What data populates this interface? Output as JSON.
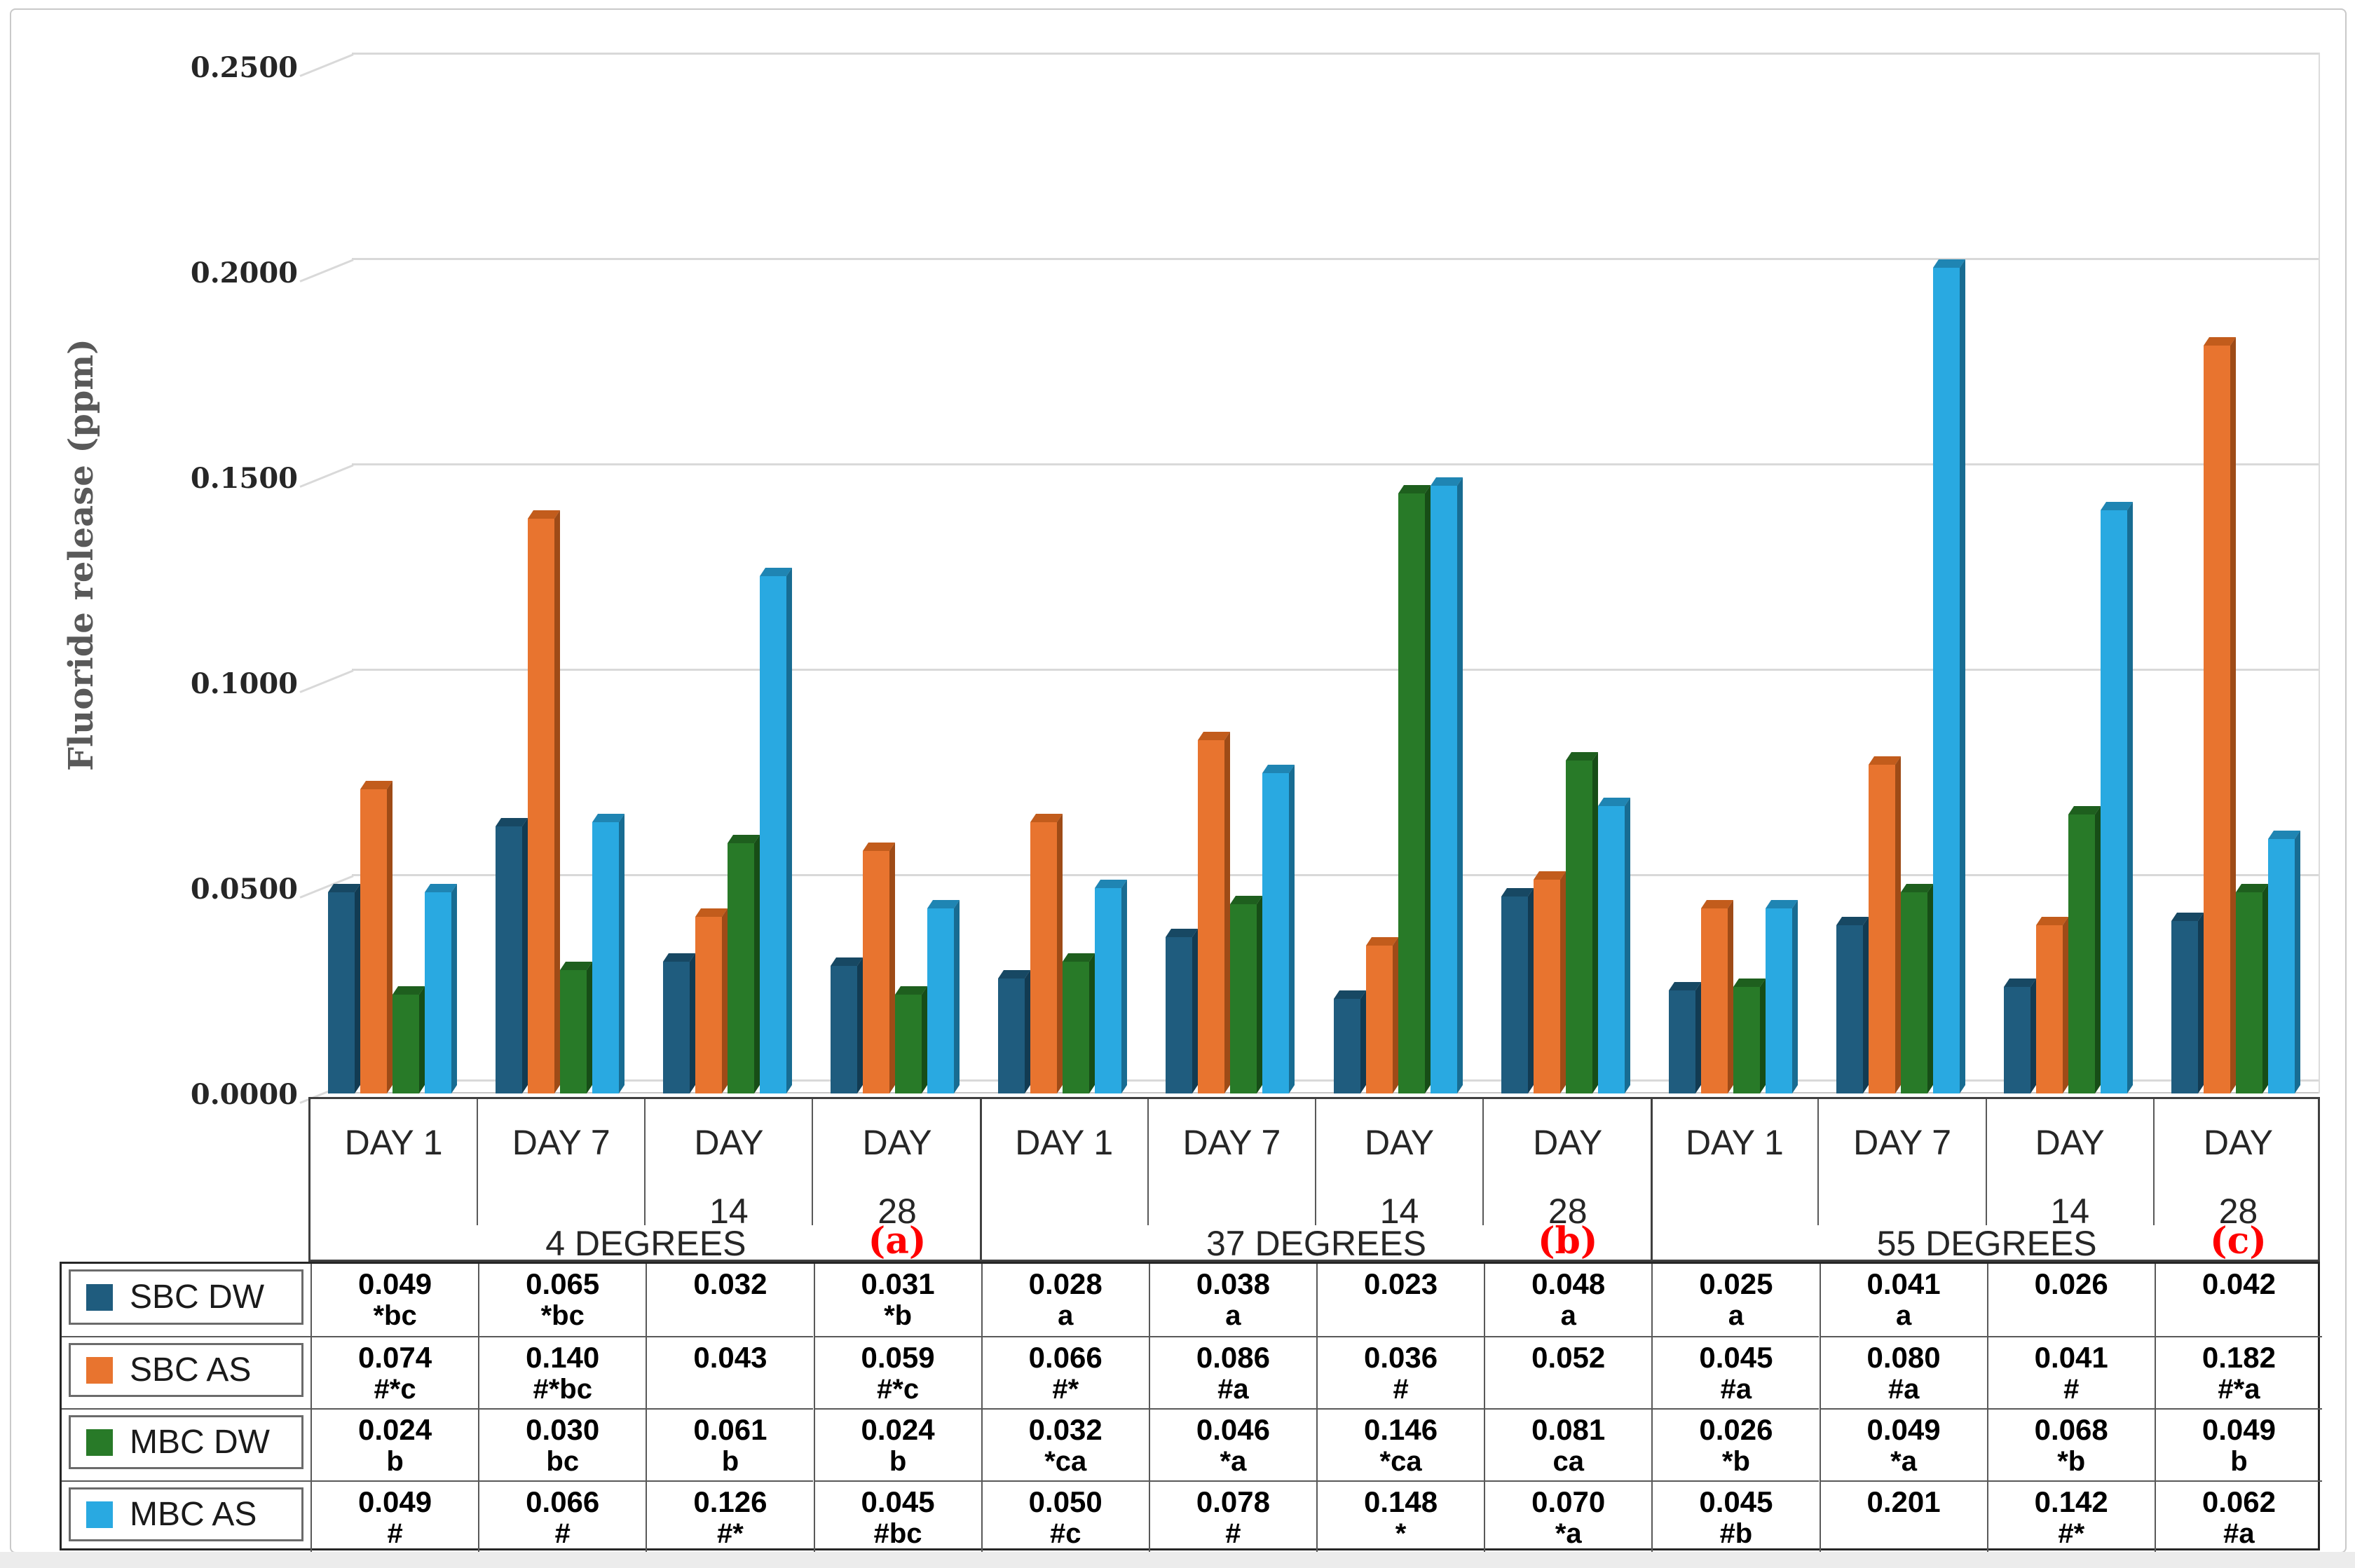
{
  "colors": {
    "annotation_red": "#FF0000",
    "grid": "#D9D9D9",
    "axis_text": "#262626",
    "title_text": "#595959"
  },
  "chart_data": {
    "type": "bar",
    "title": "",
    "xlabel": "",
    "ylabel": "Fluoride release (ppm)",
    "ylim": [
      0,
      0.25
    ],
    "ytick_labels": [
      "0.2500",
      "0.2000",
      "0.1500",
      "0.1000",
      "0.0500",
      "0.0000"
    ],
    "grid": true,
    "legend_position": "bottom-left",
    "categories": [
      "DAY 1",
      "DAY 7",
      "DAY 14",
      "DAY 28",
      "DAY 1",
      "DAY 7",
      "DAY 14",
      "DAY 28",
      "DAY 1",
      "DAY 7",
      "DAY 14",
      "DAY 28"
    ],
    "categories_display": [
      "DAY 1",
      "DAY 7",
      "DAY\n14",
      "DAY\n28",
      "DAY 1",
      "DAY 7",
      "DAY\n14",
      "DAY\n28",
      "DAY 1",
      "DAY 7",
      "DAY\n14",
      "DAY\n28"
    ],
    "groups": [
      {
        "label": "4 DEGREES",
        "annotation": "(a)",
        "span": [
          0,
          3
        ]
      },
      {
        "label": "37 DEGREES",
        "annotation": "(b)",
        "span": [
          4,
          7
        ]
      },
      {
        "label": "55 DEGREES",
        "annotation": "(c)",
        "span": [
          8,
          11
        ]
      }
    ],
    "series": [
      {
        "name": "SBC DW",
        "color": "#1F5C7E",
        "color_top": "#174863",
        "color_side": "#123B52",
        "values": [
          0.049,
          0.065,
          0.032,
          0.031,
          0.028,
          0.038,
          0.023,
          0.048,
          0.025,
          0.041,
          0.026,
          0.042
        ],
        "display": [
          "0.049",
          "0.065",
          "0.032",
          "0.031",
          "0.028",
          "0.038",
          "0.023",
          "0.048",
          "0.025",
          "0.041",
          "0.026",
          "0.042"
        ],
        "markers": [
          "*bc",
          "*bc",
          "",
          "*b",
          "a",
          "a",
          "",
          "a",
          "a",
          "a",
          "",
          ""
        ]
      },
      {
        "name": "SBC AS",
        "color": "#E8742F",
        "color_top": "#C25C1C",
        "color_side": "#9E4B17",
        "values": [
          0.074,
          0.14,
          0.043,
          0.059,
          0.066,
          0.086,
          0.036,
          0.052,
          0.045,
          0.08,
          0.041,
          0.182
        ],
        "display": [
          "0.074",
          "0.140",
          "0.043",
          "0.059",
          "0.066",
          "0.086",
          "0.036",
          "0.052",
          "0.045",
          "0.080",
          "0.041",
          "0.182"
        ],
        "markers": [
          "#*c",
          "#*bc",
          "",
          "#*c",
          "#*",
          "#a",
          "#",
          "",
          "#a",
          "#a",
          "#",
          "#*a"
        ]
      },
      {
        "name": "MBC DW",
        "color": "#287A28",
        "color_top": "#1E5F1E",
        "color_side": "#174D17",
        "values": [
          0.024,
          0.03,
          0.061,
          0.024,
          0.032,
          0.046,
          0.146,
          0.081,
          0.026,
          0.049,
          0.068,
          0.049
        ],
        "display": [
          "0.024",
          "0.030",
          "0.061",
          "0.024",
          "0.032",
          "0.046",
          "0.146",
          "0.081",
          "0.026",
          "0.049",
          "0.068",
          "0.049"
        ],
        "markers": [
          "b",
          "bc",
          "b",
          "b",
          "*ca",
          "*a",
          "*ca",
          "ca",
          "*b",
          "*a",
          "*b",
          "b"
        ]
      },
      {
        "name": "MBC AS",
        "color": "#29A9E1",
        "color_top": "#1F85B3",
        "color_side": "#186C92",
        "values": [
          0.049,
          0.066,
          0.126,
          0.045,
          0.05,
          0.078,
          0.148,
          0.07,
          0.045,
          0.201,
          0.142,
          0.062
        ],
        "display": [
          "0.049",
          "0.066",
          "0.126",
          "0.045",
          "0.050",
          "0.078",
          "0.148",
          "0.070",
          "0.045",
          "0.201",
          "0.142",
          "0.062"
        ],
        "markers": [
          "#",
          "#",
          "#*",
          "#bc",
          "#c",
          "#",
          "*",
          "*a",
          "#b",
          "",
          "#*",
          "#a"
        ]
      }
    ]
  }
}
